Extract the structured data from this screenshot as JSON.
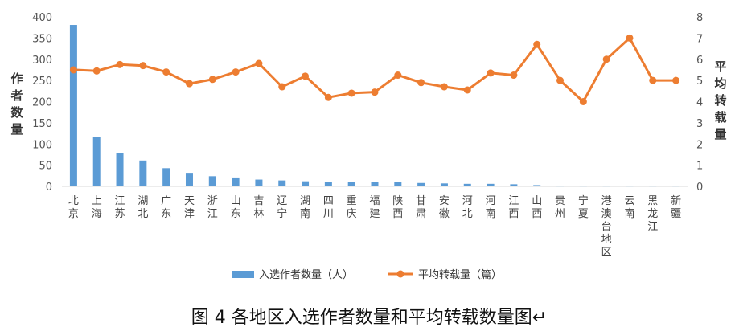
{
  "chart_data": {
    "type": "bar+line",
    "categories": [
      "北京",
      "上海",
      "江苏",
      "湖北",
      "广东",
      "天津",
      "浙江",
      "山东",
      "吉林",
      "辽宁",
      "湖南",
      "四川",
      "重庆",
      "福建",
      "陕西",
      "甘肃",
      "安徽",
      "河北",
      "河南",
      "江西",
      "山西",
      "贵州",
      "宁夏",
      "港澳台地区",
      "云南",
      "黑龙江",
      "新疆"
    ],
    "series": [
      {
        "name": "入选作者数量（人）",
        "type": "bar",
        "axis": "left",
        "color": "#5B9BD5",
        "values": [
          381,
          116,
          79,
          61,
          43,
          32,
          24,
          21,
          16,
          14,
          12,
          11,
          11,
          10,
          10,
          8,
          7,
          6,
          6,
          5,
          3,
          1,
          1,
          1,
          1,
          1,
          1
        ]
      },
      {
        "name": "平均转载量（篇）",
        "type": "line",
        "axis": "right",
        "color": "#ED7D31",
        "values": [
          5.5,
          5.45,
          5.75,
          5.7,
          5.4,
          4.85,
          5.05,
          5.4,
          5.8,
          4.7,
          5.2,
          4.2,
          4.4,
          4.45,
          5.25,
          4.9,
          4.7,
          4.55,
          5.35,
          5.25,
          6.7,
          5.0,
          4.0,
          6.0,
          7.0,
          5.0,
          5.0
        ]
      }
    ],
    "ylabel": "作者数量",
    "y2label": "平均转载量",
    "ylim": [
      0,
      400
    ],
    "y2lim": [
      0,
      8
    ],
    "yticks": [
      0,
      50,
      100,
      150,
      200,
      250,
      300,
      350,
      400
    ],
    "y2ticks": [
      0,
      1,
      2,
      3,
      4,
      5,
      6,
      7,
      8
    ],
    "grid": false,
    "legend_position": "bottom"
  },
  "caption": "图 4  各地区入选作者数量和平均转载数量图↵"
}
